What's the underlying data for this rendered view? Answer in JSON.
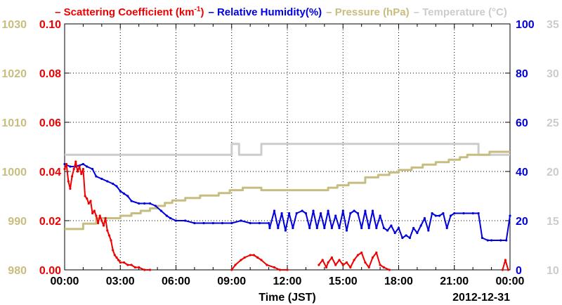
{
  "chart_data": {
    "type": "line",
    "legend": {
      "placement": "top",
      "entries": [
        {
          "name": "Scattering Coefficient (km",
          "sup": "-1",
          "close": ")",
          "color": "#ee0000"
        },
        {
          "name": "Relative Humidity(%)",
          "color": "#0000dd"
        },
        {
          "name": "Pressure (hPa)",
          "color": "#c8bd80"
        },
        {
          "name": "Temperature (°C)",
          "color": "#cccccc"
        }
      ]
    },
    "xlabel": "Time (JST)",
    "date_label": "2012-12-31",
    "xlim": [
      0,
      24
    ],
    "xticks": [
      0,
      3,
      6,
      9,
      12,
      15,
      18,
      21,
      24
    ],
    "xtick_labels": [
      "00:00",
      "03:00",
      "06:00",
      "09:00",
      "12:00",
      "15:00",
      "18:00",
      "21:00",
      "00:00"
    ],
    "grid": true,
    "axes": {
      "pressure": {
        "side": "left-outer",
        "ylim": [
          980,
          1030
        ],
        "tick_labels": [
          "980",
          "990",
          "1000",
          "1010",
          "1020",
          "1030"
        ],
        "color": "#c8bd80"
      },
      "scattering": {
        "side": "left-inner",
        "ylim": [
          0,
          0.1
        ],
        "tick_labels": [
          "0.00",
          "0.02",
          "0.04",
          "0.06",
          "0.08",
          "0.10"
        ],
        "color": "#ee0000"
      },
      "humidity": {
        "side": "right-inner",
        "ylim": [
          0,
          100
        ],
        "tick_labels": [
          "0",
          "20",
          "40",
          "60",
          "80",
          "100"
        ],
        "color": "#0000dd"
      },
      "temperature": {
        "side": "right-outer",
        "ylim": [
          10,
          35
        ],
        "tick_labels": [
          "10",
          "15",
          "20",
          "25",
          "30",
          "35"
        ],
        "color": "#cccccc"
      }
    },
    "series": [
      {
        "name": "Temperature",
        "axis": "temperature",
        "color": "#cccccc",
        "x": [
          0,
          9.0,
          9.0,
          9.4,
          9.4,
          10.6,
          10.6,
          22.3,
          22.3,
          24
        ],
        "y": [
          21.7,
          21.7,
          22.8,
          22.8,
          21.7,
          21.7,
          22.8,
          22.8,
          21.7,
          21.7
        ]
      },
      {
        "name": "Pressure",
        "axis": "pressure",
        "color": "#c8bd80",
        "x": [
          0,
          1.0,
          1.0,
          1.7,
          1.7,
          2.4,
          2.4,
          3.0,
          3.0,
          3.6,
          3.6,
          4.1,
          4.1,
          4.6,
          4.6,
          5.0,
          5.0,
          5.4,
          5.4,
          5.8,
          5.8,
          6.5,
          6.5,
          7.3,
          7.3,
          8.3,
          8.3,
          8.9,
          8.9,
          9.6,
          9.6,
          10.6,
          10.6,
          11.3,
          11.3,
          14.2,
          14.2,
          14.7,
          14.7,
          15.3,
          15.3,
          16.2,
          16.2,
          16.9,
          16.9,
          17.5,
          17.5,
          18.0,
          18.0,
          18.7,
          18.7,
          19.3,
          19.3,
          20.0,
          20.0,
          20.7,
          20.7,
          21.3,
          21.3,
          21.7,
          21.7,
          22.9,
          22.9,
          24
        ],
        "y": [
          988.3,
          988.3,
          989.4,
          989.4,
          990.5,
          990.5,
          990.5,
          990.5,
          991.0,
          991.0,
          991.5,
          991.5,
          992.0,
          992.0,
          992.5,
          992.5,
          993.0,
          993.0,
          993.6,
          993.6,
          994.1,
          994.1,
          994.6,
          994.6,
          995.1,
          995.1,
          995.6,
          995.6,
          996.2,
          996.2,
          996.7,
          996.7,
          996.2,
          996.2,
          996.2,
          996.2,
          996.7,
          996.7,
          997.2,
          997.2,
          997.7,
          997.7,
          998.8,
          998.8,
          999.3,
          999.3,
          999.8,
          999.8,
          1000.3,
          1000.3,
          1000.8,
          1000.8,
          1001.4,
          1001.4,
          1001.9,
          1001.9,
          1002.4,
          1002.4,
          1002.9,
          1002.9,
          1003.4,
          1003.4,
          1004.0,
          1004.0
        ]
      },
      {
        "name": "Relative Humidity",
        "axis": "humidity",
        "color": "#0000dd",
        "x": [
          0,
          0.3,
          0.6,
          1.0,
          1.2,
          1.5,
          1.7,
          2.0,
          2.3,
          2.6,
          2.8,
          3.0,
          3.2,
          3.4,
          3.6,
          4.0,
          4.3,
          4.6,
          4.9,
          5.2,
          5.5,
          5.7,
          6.0,
          6.5,
          7.0,
          7.5,
          8.0,
          8.5,
          9.0,
          9.5,
          10.0,
          10.5,
          11.0,
          11.05,
          11.3,
          11.5,
          11.7,
          11.9,
          12.1,
          12.3,
          12.5,
          12.8,
          13.0,
          13.2,
          13.4,
          13.6,
          13.8,
          14.0,
          14.2,
          14.4,
          14.6,
          14.8,
          15.0,
          15.2,
          15.4,
          15.6,
          15.8,
          16.0,
          16.2,
          16.4,
          16.6,
          16.8,
          17.0,
          17.2,
          17.4,
          17.6,
          17.8,
          18.0,
          18.2,
          18.4,
          18.6,
          18.8,
          19.0,
          19.2,
          19.4,
          19.6,
          19.8,
          20.0,
          20.2,
          20.4,
          20.6,
          20.8,
          21.0,
          21.5,
          22.0,
          22.3,
          22.5,
          22.8,
          23.0,
          23.5,
          23.8,
          24.0
        ],
        "y": [
          43,
          42,
          42,
          43,
          42,
          41,
          38,
          37,
          36,
          35,
          34,
          32,
          31,
          30,
          28,
          27,
          27,
          27,
          26,
          24,
          22,
          21,
          20,
          20,
          19,
          19,
          19,
          19,
          19,
          20,
          19,
          19,
          19,
          17,
          24,
          17,
          23,
          16,
          23,
          17,
          23,
          24,
          23,
          17,
          24,
          17,
          23,
          17,
          24,
          17,
          22,
          17,
          24,
          16,
          23,
          24,
          23,
          17,
          24,
          17,
          24,
          17,
          22,
          17,
          16,
          18,
          15,
          17,
          13,
          14,
          13,
          17,
          15,
          18,
          21,
          16,
          23,
          22,
          22,
          23,
          17,
          22,
          23,
          23,
          23,
          23,
          13,
          12,
          12,
          12,
          12,
          22
        ]
      },
      {
        "name": "Scattering Coefficient",
        "axis": "scattering",
        "color": "#ee0000",
        "x": [
          0,
          0.1,
          0.2,
          0.3,
          0.4,
          0.5,
          0.6,
          0.7,
          0.8,
          0.9,
          1.0,
          1.1,
          1.2,
          1.3,
          1.4,
          1.5,
          1.6,
          1.7,
          1.8,
          1.9,
          2.0,
          2.1,
          2.2,
          2.3,
          2.4,
          2.5,
          2.6,
          2.7,
          2.8,
          2.9,
          3.0,
          3.2,
          3.4,
          3.6,
          3.8,
          4.0,
          4.3,
          4.6
        ],
        "y": [
          0.041,
          0.043,
          0.036,
          0.033,
          0.038,
          0.041,
          0.044,
          0.04,
          0.042,
          0.039,
          0.041,
          0.03,
          0.029,
          0.027,
          0.028,
          0.023,
          0.024,
          0.022,
          0.019,
          0.022,
          0.02,
          0.018,
          0.021,
          0.016,
          0.014,
          0.012,
          0.008,
          0.006,
          0.005,
          0.004,
          0.003,
          0.003,
          0.002,
          0.002,
          0.001,
          0.001,
          0.0,
          0.0
        ]
      },
      {
        "name": "Scattering Coefficient",
        "axis": "scattering",
        "color": "#ee0000",
        "x": [
          9.0,
          9.2,
          9.5,
          9.7,
          10.0,
          10.2,
          10.4,
          10.6,
          10.9,
          11.3,
          11.6,
          12.0
        ],
        "y": [
          0.0,
          0.002,
          0.004,
          0.005,
          0.006,
          0.006,
          0.005,
          0.004,
          0.002,
          0.001,
          0.0,
          0.0
        ]
      },
      {
        "name": "Scattering Coefficient",
        "axis": "scattering",
        "color": "#ee0000",
        "x": [
          13.7,
          13.9,
          14.1,
          14.2,
          14.4,
          14.6,
          14.8,
          15.0,
          15.2,
          15.4,
          15.6,
          15.8,
          16.0,
          16.2,
          16.4,
          16.6,
          16.8,
          17.0,
          17.2,
          17.5
        ],
        "y": [
          0.002,
          0.004,
          0.001,
          0.003,
          0.005,
          0.002,
          0.004,
          0.002,
          0.003,
          0.001,
          0.004,
          0.006,
          0.007,
          0.003,
          0.001,
          0.005,
          0.007,
          0.002,
          0.001,
          0.0
        ]
      },
      {
        "name": "Scattering Coefficient",
        "axis": "scattering",
        "color": "#ee0000",
        "x": [
          23.6,
          23.75,
          23.9
        ],
        "y": [
          0.0,
          0.004,
          0.0
        ]
      }
    ]
  }
}
